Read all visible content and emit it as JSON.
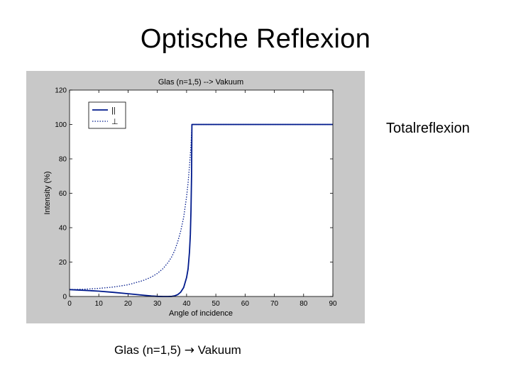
{
  "slide": {
    "title": "Optische Reflexion",
    "side_label": "Totalreflexion",
    "caption_left": "Glas (n=1,5)",
    "caption_arrow": "→",
    "caption_right": "Vakuum"
  },
  "colors": {
    "figure_background": "#c8c8c8",
    "axes_background": "#ffffff",
    "series_color": "#001a8c"
  },
  "chart_data": {
    "type": "line",
    "title": "Glas (n=1,5) --> Vakuum",
    "xlabel": "Angle of incidence",
    "ylabel": "Intensity (%)",
    "xlim": [
      0,
      90
    ],
    "ylim": [
      0,
      120
    ],
    "xticks": [
      0,
      10,
      20,
      30,
      40,
      50,
      60,
      70,
      80,
      90
    ],
    "yticks": [
      0,
      20,
      40,
      60,
      80,
      100,
      120
    ],
    "grid": false,
    "legend_position": "top-left",
    "x": [
      0,
      5,
      10,
      15,
      20,
      25,
      28,
      30,
      32,
      33.69,
      35,
      36,
      37,
      38,
      39,
      40,
      40.5,
      41,
      41.3,
      41.5,
      41.7,
      41.81,
      45,
      50,
      60,
      70,
      80,
      90
    ],
    "series": [
      {
        "name": "||",
        "style": "solid",
        "values": [
          4.0,
          3.6,
          3.1,
          2.4,
          1.6,
          0.8,
          0.3,
          0.1,
          0.02,
          0,
          0.1,
          0.4,
          1.1,
          2.5,
          5.2,
          11,
          16,
          26,
          36,
          50,
          70,
          100,
          100,
          100,
          100,
          100,
          100,
          100
        ]
      },
      {
        "name": "⊥",
        "style": "dotted",
        "values": [
          4.0,
          4.2,
          4.7,
          5.5,
          6.8,
          9.2,
          11.3,
          13.4,
          16.3,
          19.8,
          23.3,
          27,
          31.9,
          38,
          46,
          58,
          66,
          76,
          83,
          88,
          95,
          100,
          100,
          100,
          100,
          100,
          100,
          100
        ]
      }
    ]
  }
}
